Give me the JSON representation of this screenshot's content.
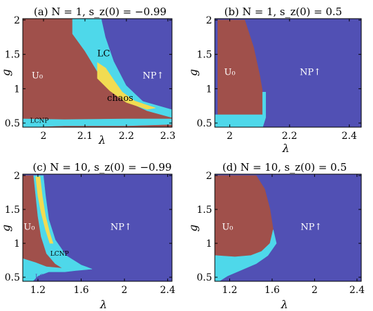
{
  "colors": {
    "U0": "#a0504b",
    "NP": "#5150b4",
    "LC": "#4ed8ea",
    "chaos": "#f2dc52",
    "dots": "#6a8a7e",
    "light_text": "#ffffff",
    "dark_text": "#000000"
  },
  "chart_data": [
    {
      "type": "heatmap",
      "panel": "a",
      "title": "(a) N = 1, s_z(0) = −0.99",
      "title_label": "(a)",
      "title_math": "N = 1, s_z(0) = −0.99",
      "xlabel": "λ",
      "ylabel": "g",
      "xlim": [
        1.95,
        2.31
      ],
      "ylim": [
        0.44,
        2.02
      ],
      "xticks": [
        2,
        2.1,
        2.2,
        2.3
      ],
      "xtick_labels": [
        "2",
        "2.1",
        "2.2",
        "2.3"
      ],
      "yticks": [
        0.5,
        1,
        1.5,
        2
      ],
      "ytick_labels": [
        "0.5",
        "1",
        "1.5",
        "2"
      ],
      "regions": [
        {
          "name": "U0",
          "color_key": "U0",
          "polygon": [
            [
              1.95,
              0.44
            ],
            [
              1.95,
              2.02
            ],
            [
              2.07,
              2.02
            ],
            [
              2.07,
              1.8
            ],
            [
              2.1,
              1.55
            ],
            [
              2.13,
              1.25
            ],
            [
              2.17,
              1.0
            ],
            [
              2.2,
              0.82
            ],
            [
              2.25,
              0.68
            ],
            [
              2.31,
              0.58
            ],
            [
              2.31,
              0.44
            ]
          ]
        },
        {
          "name": "LC",
          "color_key": "LC",
          "polygon": [
            [
              2.1,
              2.02
            ],
            [
              2.14,
              2.02
            ],
            [
              2.15,
              1.75
            ],
            [
              2.17,
              1.4
            ],
            [
              2.2,
              1.05
            ],
            [
              2.24,
              0.82
            ],
            [
              2.31,
              0.7
            ],
            [
              2.31,
              0.58
            ],
            [
              2.25,
              0.68
            ],
            [
              2.2,
              0.82
            ],
            [
              2.17,
              1.0
            ],
            [
              2.13,
              1.25
            ],
            [
              2.1,
              1.55
            ],
            [
              2.07,
              1.8
            ],
            [
              2.07,
              2.02
            ]
          ]
        },
        {
          "name": "chaos",
          "color_key": "chaos",
          "polygon": [
            [
              2.13,
              1.15
            ],
            [
              2.16,
              0.97
            ],
            [
              2.2,
              0.8
            ],
            [
              2.25,
              0.7
            ],
            [
              2.27,
              0.72
            ],
            [
              2.22,
              0.82
            ],
            [
              2.19,
              0.95
            ],
            [
              2.17,
              1.12
            ],
            [
              2.15,
              1.3
            ],
            [
              2.13,
              1.38
            ]
          ]
        },
        {
          "name": "LCNP",
          "color_key": "LC",
          "polygon": [
            [
              1.95,
              0.44
            ],
            [
              1.95,
              0.56
            ],
            [
              2.05,
              0.55
            ],
            [
              2.2,
              0.56
            ],
            [
              2.31,
              0.56
            ],
            [
              2.31,
              0.48
            ],
            [
              2.2,
              0.46
            ],
            [
              2.05,
              0.46
            ]
          ]
        },
        {
          "name": "NP",
          "color_key": "NP",
          "polygon": [
            [
              2.14,
              2.02
            ],
            [
              2.31,
              2.02
            ],
            [
              2.31,
              0.7
            ],
            [
              2.24,
              0.82
            ],
            [
              2.2,
              1.05
            ],
            [
              2.17,
              1.4
            ],
            [
              2.15,
              1.75
            ]
          ]
        }
      ],
      "labels": [
        {
          "text": "U₀",
          "x": 1.985,
          "y": 1.15,
          "color_key": "light_text",
          "size": "normal"
        },
        {
          "text": "LC",
          "x": 2.145,
          "y": 1.47,
          "color_key": "dark_text",
          "size": "normal"
        },
        {
          "text": "NP↑",
          "x": 2.265,
          "y": 1.15,
          "color_key": "light_text",
          "size": "normal"
        },
        {
          "text": "chaos",
          "x": 2.185,
          "y": 0.82,
          "color_key": "dark_text",
          "size": "normal"
        },
        {
          "text": "LCNP",
          "x": 1.99,
          "y": 0.505,
          "color_key": "dark_text",
          "size": "small"
        }
      ]
    },
    {
      "type": "heatmap",
      "panel": "b",
      "title": "(b) N = 1, s_z(0) = 0.5",
      "title_label": "(b)",
      "title_math": "N = 1, s_z(0) = 0.5",
      "xlabel": "λ",
      "ylabel": "g",
      "xlim": [
        1.95,
        2.44
      ],
      "ylim": [
        0.44,
        2.02
      ],
      "xticks": [
        2,
        2.2,
        2.4
      ],
      "xtick_labels": [
        "2",
        "2.2",
        "2.4"
      ],
      "yticks": [
        0.5,
        1,
        1.5,
        2
      ],
      "ytick_labels": [
        "0.5",
        "1",
        "1.5",
        "2"
      ],
      "regions": [
        {
          "name": "NP",
          "color_key": "NP",
          "polygon": [
            [
              1.95,
              0.44
            ],
            [
              1.95,
              2.02
            ],
            [
              2.44,
              2.02
            ],
            [
              2.44,
              0.44
            ]
          ]
        },
        {
          "name": "U0",
          "color_key": "U0",
          "polygon": [
            [
              1.96,
              0.62
            ],
            [
              1.96,
              2.0
            ],
            [
              2.05,
              2.0
            ],
            [
              2.08,
              1.6
            ],
            [
              2.1,
              1.2
            ],
            [
              2.11,
              0.95
            ],
            [
              2.11,
              0.62
            ]
          ]
        },
        {
          "name": "LC",
          "color_key": "LC",
          "polygon": [
            [
              1.95,
              0.44
            ],
            [
              1.95,
              0.62
            ],
            [
              2.11,
              0.62
            ],
            [
              2.11,
              0.95
            ],
            [
              2.12,
              0.95
            ],
            [
              2.12,
              0.58
            ],
            [
              2.11,
              0.44
            ]
          ]
        }
      ],
      "labels": [
        {
          "text": "U₀",
          "x": 2.0,
          "y": 1.2,
          "color_key": "light_text",
          "size": "normal"
        },
        {
          "text": "NP↑",
          "x": 2.27,
          "y": 1.2,
          "color_key": "light_text",
          "size": "normal"
        }
      ]
    },
    {
      "type": "heatmap",
      "panel": "c",
      "title": "(c) N = 10, s_z(0) = −0.99",
      "title_label": "(c)",
      "title_math": "N = 10, s_z(0) = −0.99",
      "xlabel": "λ",
      "ylabel": "g",
      "xlim": [
        1.06,
        2.44
      ],
      "ylim": [
        0.44,
        2.02
      ],
      "xticks": [
        1.2,
        1.6,
        2,
        2.4
      ],
      "xtick_labels": [
        "1.2",
        "1.6",
        "2",
        "2.4"
      ],
      "yticks": [
        0.5,
        1,
        1.5,
        2
      ],
      "ytick_labels": [
        "0.5",
        "1",
        "1.5",
        "2"
      ],
      "regions": [
        {
          "name": "NP",
          "color_key": "NP",
          "polygon": [
            [
              1.06,
              0.44
            ],
            [
              1.06,
              2.02
            ],
            [
              2.44,
              2.02
            ],
            [
              2.44,
              0.44
            ]
          ]
        },
        {
          "name": "LC",
          "color_key": "LC",
          "polygon": [
            [
              1.06,
              0.44
            ],
            [
              1.06,
              0.82
            ],
            [
              1.15,
              0.8
            ],
            [
              1.3,
              0.72
            ],
            [
              1.45,
              0.64
            ],
            [
              1.55,
              0.62
            ],
            [
              1.56,
              0.6
            ],
            [
              1.45,
              0.58
            ],
            [
              1.3,
              0.58
            ],
            [
              1.2,
              0.52
            ],
            [
              1.15,
              0.44
            ]
          ]
        },
        {
          "name": "U0",
          "color_key": "U0",
          "polygon": [
            [
              1.06,
              0.78
            ],
            [
              1.06,
              2.0
            ],
            [
              1.16,
              2.0
            ],
            [
              1.18,
              1.7
            ],
            [
              1.2,
              1.4
            ],
            [
              1.23,
              1.1
            ],
            [
              1.28,
              0.85
            ],
            [
              1.36,
              0.7
            ],
            [
              1.42,
              0.64
            ],
            [
              1.28,
              0.66
            ],
            [
              1.18,
              0.72
            ],
            [
              1.1,
              0.76
            ]
          ]
        },
        {
          "name": "LC2",
          "color_key": "LC",
          "polygon": [
            [
              1.16,
              2.0
            ],
            [
              1.25,
              2.0
            ],
            [
              1.27,
              1.7
            ],
            [
              1.3,
              1.35
            ],
            [
              1.36,
              1.05
            ],
            [
              1.46,
              0.82
            ],
            [
              1.6,
              0.68
            ],
            [
              1.7,
              0.62
            ],
            [
              1.56,
              0.6
            ],
            [
              1.42,
              0.64
            ],
            [
              1.36,
              0.7
            ],
            [
              1.28,
              0.85
            ],
            [
              1.23,
              1.1
            ],
            [
              1.2,
              1.4
            ],
            [
              1.18,
              1.7
            ]
          ]
        },
        {
          "name": "chaos",
          "color_key": "chaos",
          "polygon": [
            [
              1.18,
              1.98
            ],
            [
              1.22,
              1.98
            ],
            [
              1.24,
              1.7
            ],
            [
              1.27,
              1.4
            ],
            [
              1.31,
              1.15
            ],
            [
              1.34,
              1.0
            ],
            [
              1.31,
              1.0
            ],
            [
              1.27,
              1.2
            ],
            [
              1.23,
              1.45
            ],
            [
              1.2,
              1.7
            ]
          ]
        }
      ],
      "labels": [
        {
          "text": "U₀",
          "x": 1.12,
          "y": 1.2,
          "color_key": "light_text",
          "size": "normal"
        },
        {
          "text": "LCNP",
          "x": 1.4,
          "y": 0.815,
          "color_key": "dark_text",
          "size": "small"
        },
        {
          "text": "NP↑",
          "x": 1.97,
          "y": 1.2,
          "color_key": "light_text",
          "size": "normal"
        },
        {
          "text": "LCNP",
          "x": 1.26,
          "y": 0.475,
          "color_key": "NP",
          "size": "small"
        }
      ]
    },
    {
      "type": "heatmap",
      "panel": "d",
      "title": "(d) N = 10, s_z(0) = 0.5",
      "title_label": "(d)",
      "title_math": "N = 10, s_z(0) = 0.5",
      "xlabel": "λ",
      "ylabel": "g",
      "xlim": [
        1.06,
        2.44
      ],
      "ylim": [
        0.44,
        2.02
      ],
      "xticks": [
        1.2,
        1.6,
        2,
        2.4
      ],
      "xtick_labels": [
        "1.2",
        "1.6",
        "2",
        "2.4"
      ],
      "yticks": [
        0.5,
        1,
        1.5,
        2
      ],
      "ytick_labels": [
        "0.5",
        "1",
        "1.5",
        "2"
      ],
      "regions": [
        {
          "name": "NP",
          "color_key": "NP",
          "polygon": [
            [
              1.06,
              0.44
            ],
            [
              1.06,
              2.02
            ],
            [
              2.44,
              2.02
            ],
            [
              2.44,
              0.44
            ]
          ]
        },
        {
          "name": "U0",
          "color_key": "U0",
          "polygon": [
            [
              1.06,
              0.82
            ],
            [
              1.06,
              2.0
            ],
            [
              1.45,
              2.0
            ],
            [
              1.53,
              1.8
            ],
            [
              1.58,
              1.5
            ],
            [
              1.61,
              1.2
            ],
            [
              1.58,
              1.0
            ],
            [
              1.5,
              0.88
            ],
            [
              1.4,
              0.82
            ],
            [
              1.25,
              0.8
            ]
          ]
        },
        {
          "name": "LC",
          "color_key": "LC",
          "polygon": [
            [
              1.06,
              0.44
            ],
            [
              1.06,
              0.82
            ],
            [
              1.25,
              0.8
            ],
            [
              1.4,
              0.82
            ],
            [
              1.5,
              0.88
            ],
            [
              1.58,
              1.0
            ],
            [
              1.61,
              1.2
            ],
            [
              1.64,
              1.0
            ],
            [
              1.56,
              0.82
            ],
            [
              1.45,
              0.7
            ],
            [
              1.3,
              0.6
            ],
            [
              1.18,
              0.52
            ],
            [
              1.1,
              0.44
            ]
          ]
        }
      ],
      "labels": [
        {
          "text": "U₀",
          "x": 1.18,
          "y": 1.2,
          "color_key": "light_text",
          "size": "normal"
        },
        {
          "text": "NP↑",
          "x": 1.97,
          "y": 1.2,
          "color_key": "light_text",
          "size": "normal"
        }
      ]
    }
  ]
}
